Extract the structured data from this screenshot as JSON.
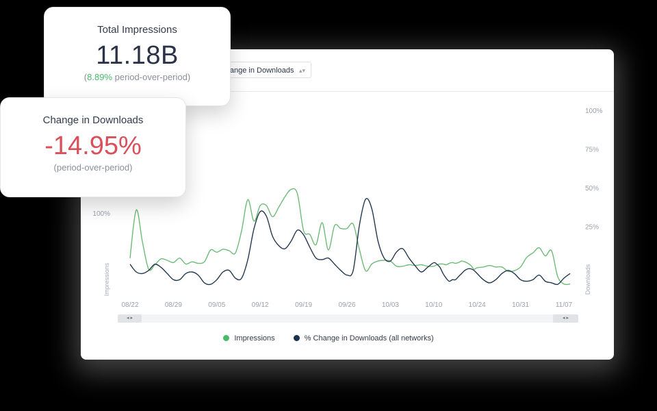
{
  "cards": {
    "impressions": {
      "title": "Total Impressions",
      "value": "11.18B",
      "change": "8.89%",
      "suffix": " period-over-period)",
      "prefix": "("
    },
    "downloads": {
      "title": "Change in Downloads",
      "value": "-14.95%",
      "sub": "(period-over-period)"
    }
  },
  "dropdown": {
    "label": "% Change in Downloads",
    "icon": "chevron-up-down-icon"
  },
  "legend": [
    {
      "label": "Impressions",
      "color": "#4bb96a"
    },
    {
      "label": "% Change in Downloads (all networks)",
      "color": "#1c3350"
    }
  ],
  "scrollbar": {
    "left_handle": "◂ ▸",
    "right_handle": "◂ ▸"
  },
  "chart_data": {
    "type": "line",
    "x_ticks": [
      "08/22",
      "08/29",
      "09/05",
      "09/12",
      "09/19",
      "09/26",
      "10/03",
      "10/10",
      "10/24",
      "10/31",
      "11/07"
    ],
    "left_axis": {
      "title": "Impressions",
      "ticks": [
        {
          "value": 100,
          "label": "100%"
        }
      ]
    },
    "right_axis": {
      "title": "Downloads",
      "ticks": [
        {
          "value": 25,
          "label": "25%"
        },
        {
          "value": 50,
          "label": "50%"
        },
        {
          "value": 75,
          "label": "75%"
        },
        {
          "value": 100,
          "label": "100%"
        }
      ]
    },
    "dates": [
      "08/22",
      "08/23",
      "08/24",
      "08/25",
      "08/26",
      "08/27",
      "08/28",
      "08/29",
      "08/30",
      "08/31",
      "09/01",
      "09/02",
      "09/03",
      "09/04",
      "09/05",
      "09/06",
      "09/07",
      "09/08",
      "09/09",
      "09/10",
      "09/11",
      "09/12",
      "09/13",
      "09/14",
      "09/15",
      "09/16",
      "09/17",
      "09/18",
      "09/19",
      "09/20",
      "09/21",
      "09/22",
      "09/23",
      "09/24",
      "09/25",
      "09/26",
      "09/27",
      "09/28",
      "09/29",
      "09/30",
      "10/01",
      "10/02",
      "10/03",
      "10/04",
      "10/05",
      "10/06",
      "10/07",
      "10/08",
      "10/09",
      "10/10",
      "10/11",
      "10/12",
      "10/13",
      "10/14",
      "10/15",
      "10/16",
      "10/17",
      "10/18",
      "10/19",
      "10/20",
      "10/21",
      "10/22",
      "10/23",
      "10/24",
      "10/25",
      "10/26",
      "10/27",
      "10/28",
      "10/29",
      "10/30",
      "10/31",
      "11/01",
      "11/02",
      "11/03",
      "11/04",
      "11/05",
      "11/06",
      "11/07",
      "11/08"
    ],
    "series": [
      {
        "name": "Impressions",
        "axis": "left",
        "color": "#6dbb78",
        "values": [
          40,
          105,
          62,
          25,
          31,
          39,
          37,
          34,
          40,
          32,
          35,
          33,
          35,
          51,
          48,
          52,
          50,
          47,
          77,
          119,
          90,
          111,
          111,
          96,
          109,
          123,
          133,
          127,
          77,
          72,
          58,
          88,
          51,
          84,
          80,
          80,
          86,
          52,
          23,
          32,
          36,
          37,
          36,
          29,
          29,
          31,
          30,
          31,
          29,
          29,
          31,
          32,
          32,
          31,
          33,
          34,
          33,
          34,
          36,
          35,
          33,
          30,
          25,
          27,
          28,
          30,
          28,
          28,
          22,
          23,
          28,
          41,
          47,
          54,
          43,
          50,
          15,
          5,
          5
        ]
      },
      {
        "name": "% Change in Downloads (all networks)",
        "axis": "right",
        "color": "#23384f",
        "values": [
          1,
          -4,
          -5,
          -3,
          1,
          -1,
          -5,
          -9,
          -9,
          -5,
          -4,
          -6,
          -11,
          -12,
          -9,
          -4,
          -3,
          -8,
          -8,
          4,
          24,
          35,
          32,
          19,
          13,
          11,
          16,
          23,
          20,
          12,
          5,
          4,
          5,
          1,
          -3,
          -6,
          -3,
          26,
          43,
          37,
          16,
          5,
          3,
          9,
          11,
          5,
          0,
          -4,
          -1,
          2,
          1,
          -1,
          -5,
          -8,
          -10,
          -9,
          -9,
          -7,
          -5,
          -3,
          -2,
          -2,
          -3,
          -5,
          -9,
          -11,
          -9,
          -5,
          -3,
          -5,
          -9,
          -10,
          -9,
          -6,
          -10,
          -11,
          -12,
          -8,
          -5
        ]
      }
    ]
  }
}
